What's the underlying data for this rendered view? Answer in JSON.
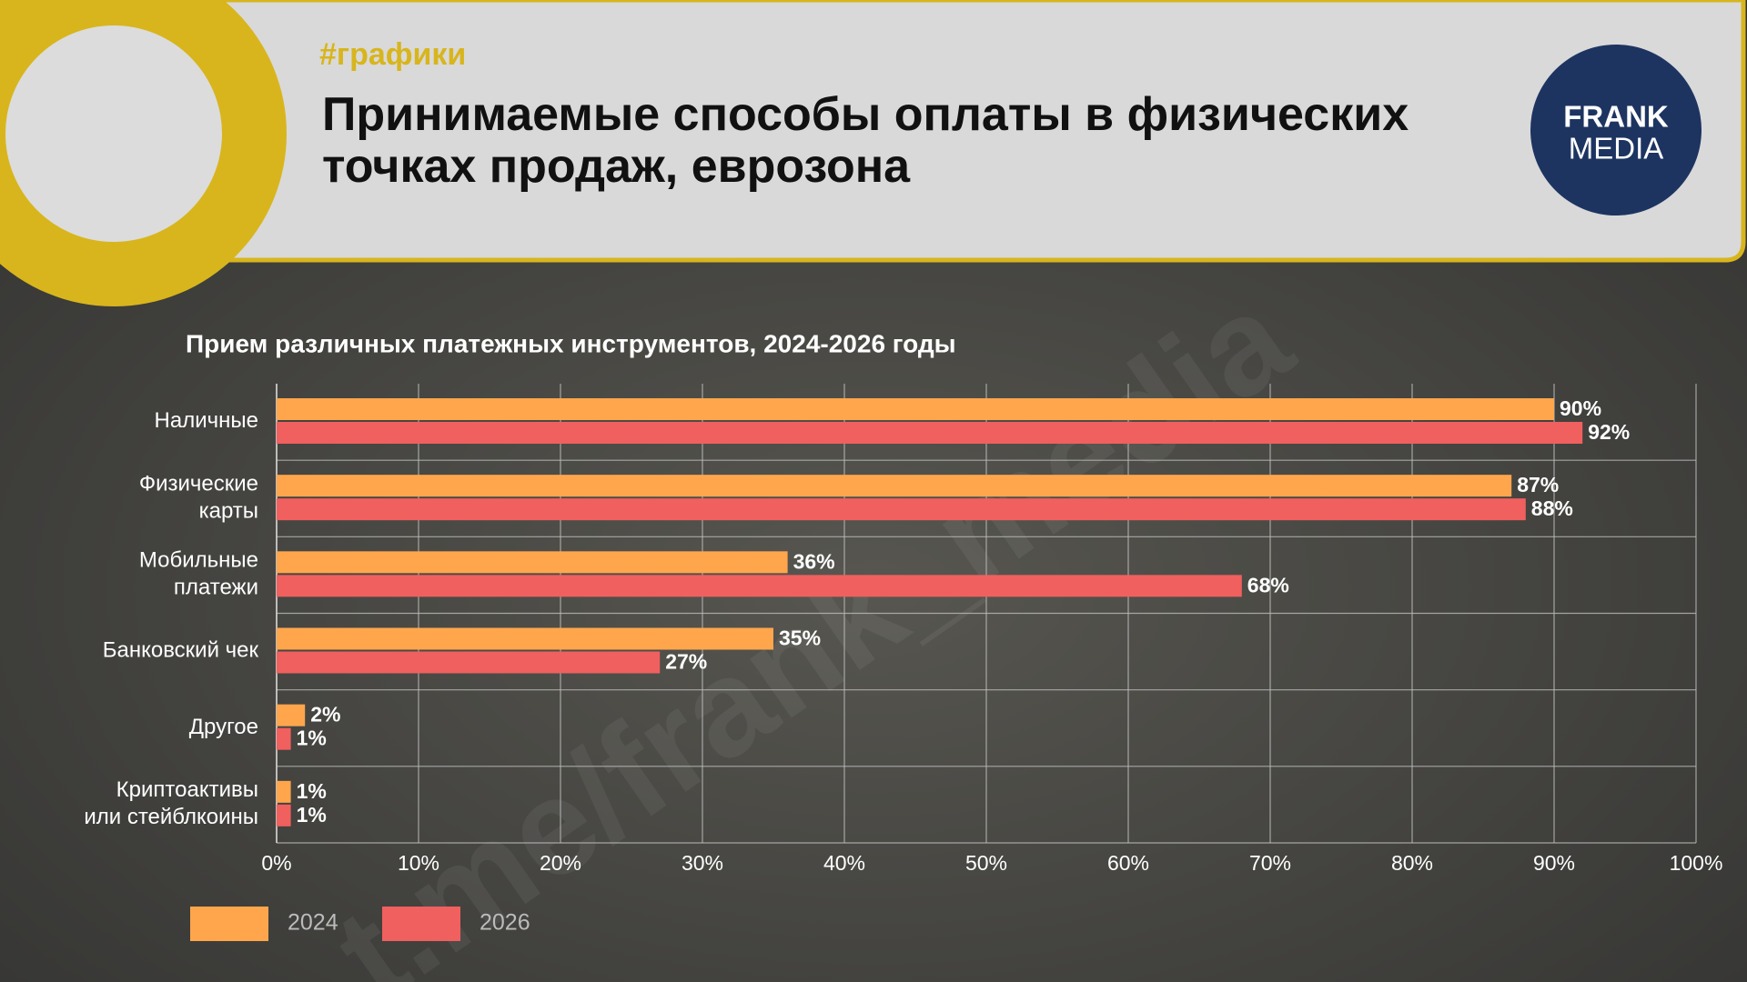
{
  "header": {
    "tag": "#графики",
    "title": "Принимаемые способы оплаты в физических\nточках продаж, еврозона",
    "logo": [
      "FRANK",
      "MEDIA"
    ]
  },
  "watermark": "t.me/frank_media",
  "chart_data": {
    "type": "hbar",
    "title": "Прием различных платежных инструментов, 2024-2026 годы",
    "categories": [
      "Наличные",
      "Физические\nкарты",
      "Мобильные\nплатежи",
      "Банковский чек",
      "Другое",
      "Криптоактивы\nили стейблкоины"
    ],
    "series": [
      {
        "name": "2024",
        "color": "#ffa64d",
        "values": [
          90,
          87,
          36,
          35,
          2,
          1
        ],
        "value_labels": [
          "90%",
          "87%",
          "36%",
          "35%",
          "2%",
          "1%"
        ]
      },
      {
        "name": "2026",
        "color": "#f0605e",
        "values": [
          92,
          88,
          68,
          27,
          1,
          1
        ],
        "value_labels": [
          "92%",
          "88%",
          "68%",
          "27%",
          "1%",
          "1%"
        ]
      }
    ],
    "xlim": [
      0,
      100
    ],
    "xticks": [
      {
        "value": 0,
        "label": "0%"
      },
      {
        "value": 10,
        "label": "10%"
      },
      {
        "value": 20,
        "label": "20%"
      },
      {
        "value": 30,
        "label": "30%"
      },
      {
        "value": 40,
        "label": "40%"
      },
      {
        "value": 50,
        "label": "50%"
      },
      {
        "value": 60,
        "label": "60%"
      },
      {
        "value": 70,
        "label": "70%"
      },
      {
        "value": 80,
        "label": "80%"
      },
      {
        "value": 90,
        "label": "90%"
      },
      {
        "value": 100,
        "label": "100%"
      }
    ],
    "grid": true
  }
}
